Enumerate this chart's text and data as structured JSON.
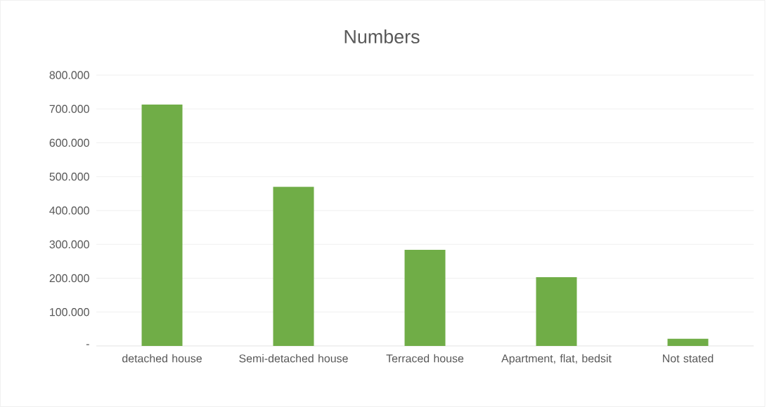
{
  "chart_data": {
    "type": "bar",
    "title": "Numbers",
    "categories": [
      "detached house",
      "Semi-detached house",
      "Terraced house",
      "Apartment, flat, bedsit",
      "Not stated"
    ],
    "values": [
      713000,
      470000,
      284000,
      203000,
      21000
    ],
    "color": "#70ad47",
    "ylim": [
      0,
      800000
    ],
    "yticks": [
      {
        "value": 0,
        "label": "-"
      },
      {
        "value": 100000,
        "label": "100.000"
      },
      {
        "value": 200000,
        "label": "200.000"
      },
      {
        "value": 300000,
        "label": "300.000"
      },
      {
        "value": 400000,
        "label": "400.000"
      },
      {
        "value": 500000,
        "label": "500.000"
      },
      {
        "value": 600000,
        "label": "600.000"
      },
      {
        "value": 700000,
        "label": "700.000"
      },
      {
        "value": 800000,
        "label": "800.000"
      }
    ],
    "grid": "y"
  }
}
